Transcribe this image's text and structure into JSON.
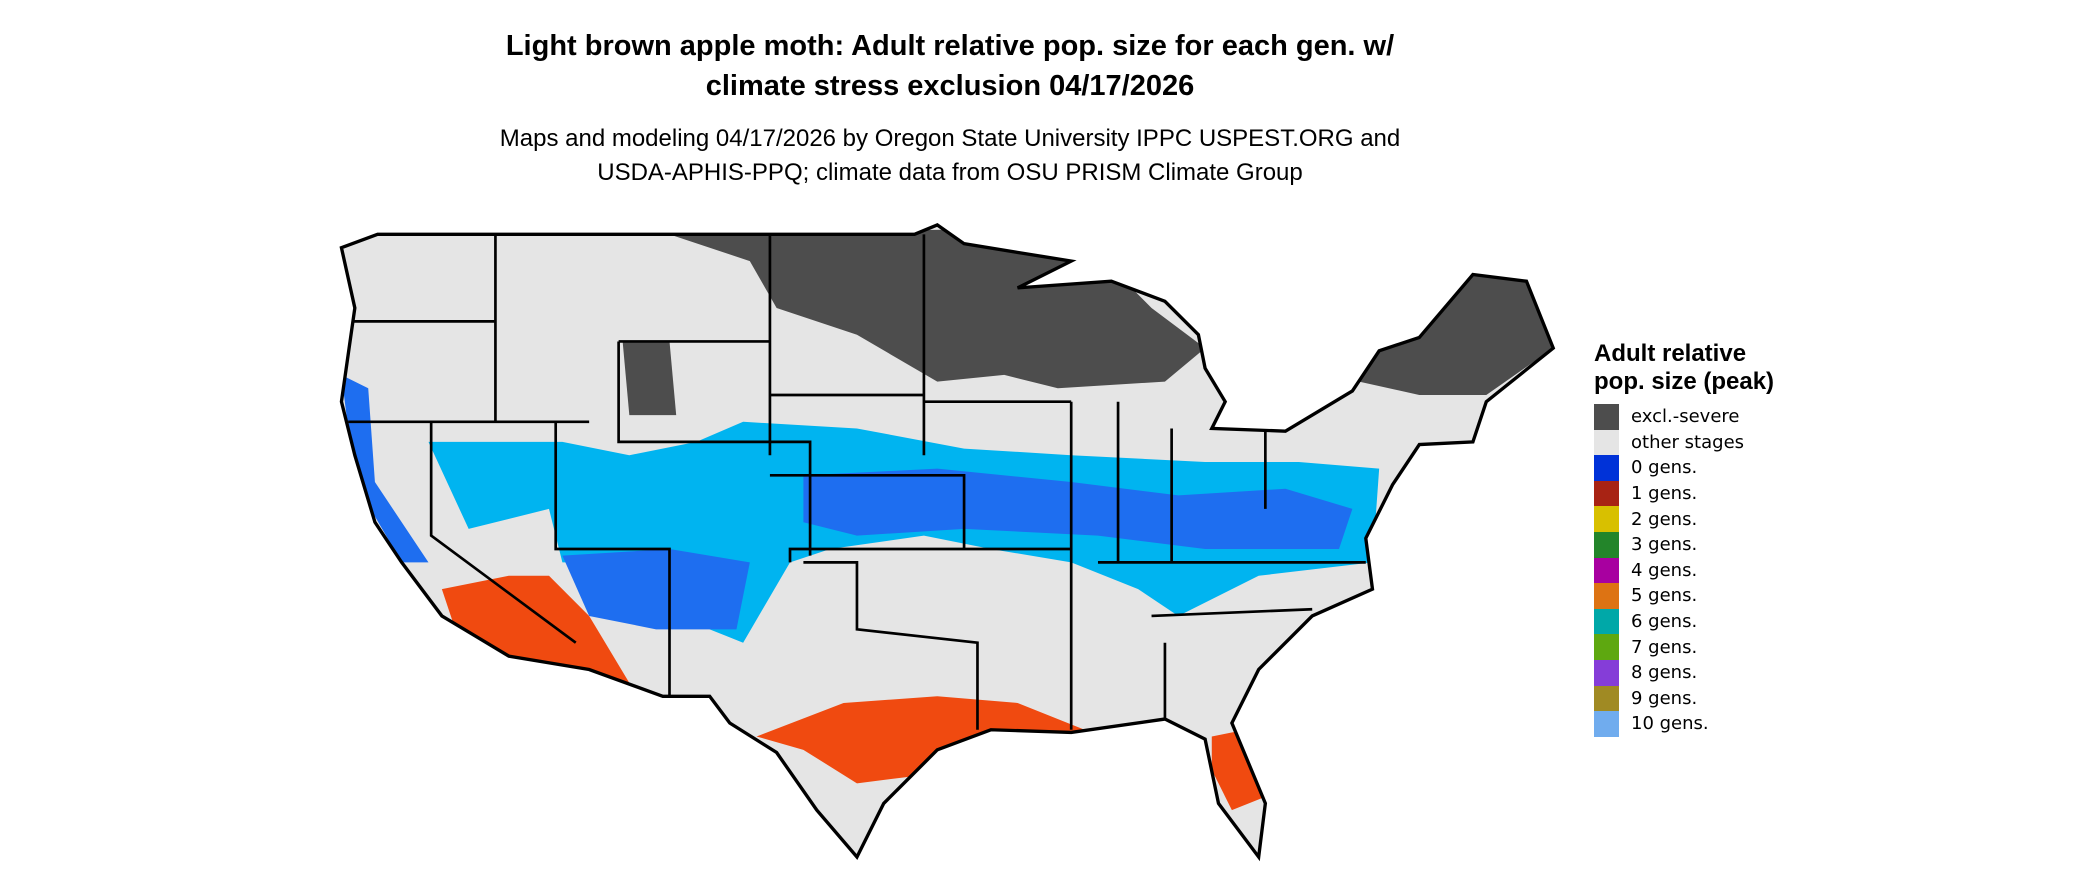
{
  "title": {
    "line1": "Light brown apple moth: Adult relative pop. size for each gen. w/",
    "line2": "climate stress exclusion 04/17/2026"
  },
  "subtitle": {
    "line1": "Maps and modeling 04/17/2026 by Oregon State University IPPC USPEST.ORG and",
    "line2": "USDA-APHIS-PPQ; climate data from OSU PRISM Climate Group"
  },
  "legend": {
    "title": "Adult relative pop. size (peak)",
    "items": [
      {
        "label": "excl.-severe",
        "color": "#4d4d4d"
      },
      {
        "label": "other stages",
        "color": "#e5e5e5"
      },
      {
        "label": "0 gens.",
        "color": "#0032d8"
      },
      {
        "label": "1 gens.",
        "color": "#a82314"
      },
      {
        "label": "2 gens.",
        "color": "#d8c000"
      },
      {
        "label": "3 gens.",
        "color": "#23852a"
      },
      {
        "label": "4 gens.",
        "color": "#a800a0"
      },
      {
        "label": "5 gens.",
        "color": "#dd7313"
      },
      {
        "label": "6 gens.",
        "color": "#00a8a8"
      },
      {
        "label": "7 gens.",
        "color": "#5ea810"
      },
      {
        "label": "8 gens.",
        "color": "#853dd8"
      },
      {
        "label": "9 gens.",
        "color": "#a08a23"
      },
      {
        "label": "10 gens.",
        "color": "#70acee"
      }
    ]
  },
  "map_colors": {
    "light_blue": "#00b4f0",
    "mid_blue": "#1e6ef0",
    "red_orange": "#f04a10"
  }
}
